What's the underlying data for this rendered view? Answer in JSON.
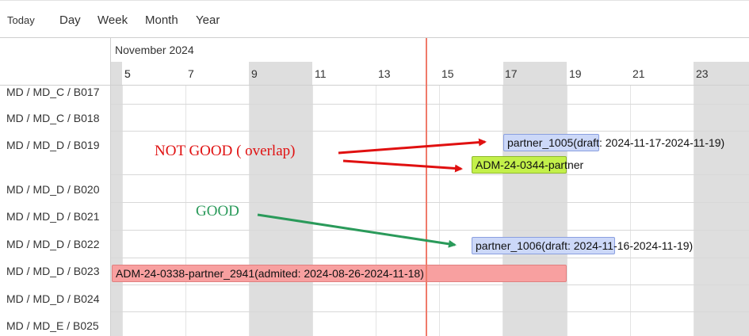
{
  "toolbar": {
    "today": "Today",
    "day": "Day",
    "week": "Week",
    "month": "Month",
    "year": "Year"
  },
  "header": {
    "month": "November 2024",
    "days": [
      "5",
      "7",
      "9",
      "11",
      "13",
      "15",
      "17",
      "19",
      "21",
      "23"
    ]
  },
  "rows": [
    "MD / MD_C / B017",
    "MD / MD_C / B018",
    "MD / MD_D / B019",
    "MD / MD_D / B020",
    "MD / MD_D / B021",
    "MD / MD_D / B022",
    "MD / MD_D / B023",
    "MD / MD_D / B024",
    "MD / MD_E / B025"
  ],
  "events": {
    "partner_1005": "partner_1005(draft: 2024-11-17-2024-11-19)",
    "adm_0344": "ADM-24-0344-partner",
    "partner_1006": "partner_1006(draft: 2024-11-16-2024-11-19)",
    "adm_0338": "ADM-24-0338-partner_2941(admited: 2024-08-26-2024-11-18)"
  },
  "colors": {
    "draft_fill": "#ccd8f8",
    "draft_border": "#8a9fe0",
    "admitted_short_fill": "#c3f04a",
    "admitted_fill": "#f8a0a0",
    "now_line": "#ef7a6a",
    "annotation_bad": "#e01010",
    "annotation_good": "#2a9a5a"
  },
  "annotations": {
    "bad": "NOT GOOD ( overlap)",
    "good": "GOOD"
  }
}
